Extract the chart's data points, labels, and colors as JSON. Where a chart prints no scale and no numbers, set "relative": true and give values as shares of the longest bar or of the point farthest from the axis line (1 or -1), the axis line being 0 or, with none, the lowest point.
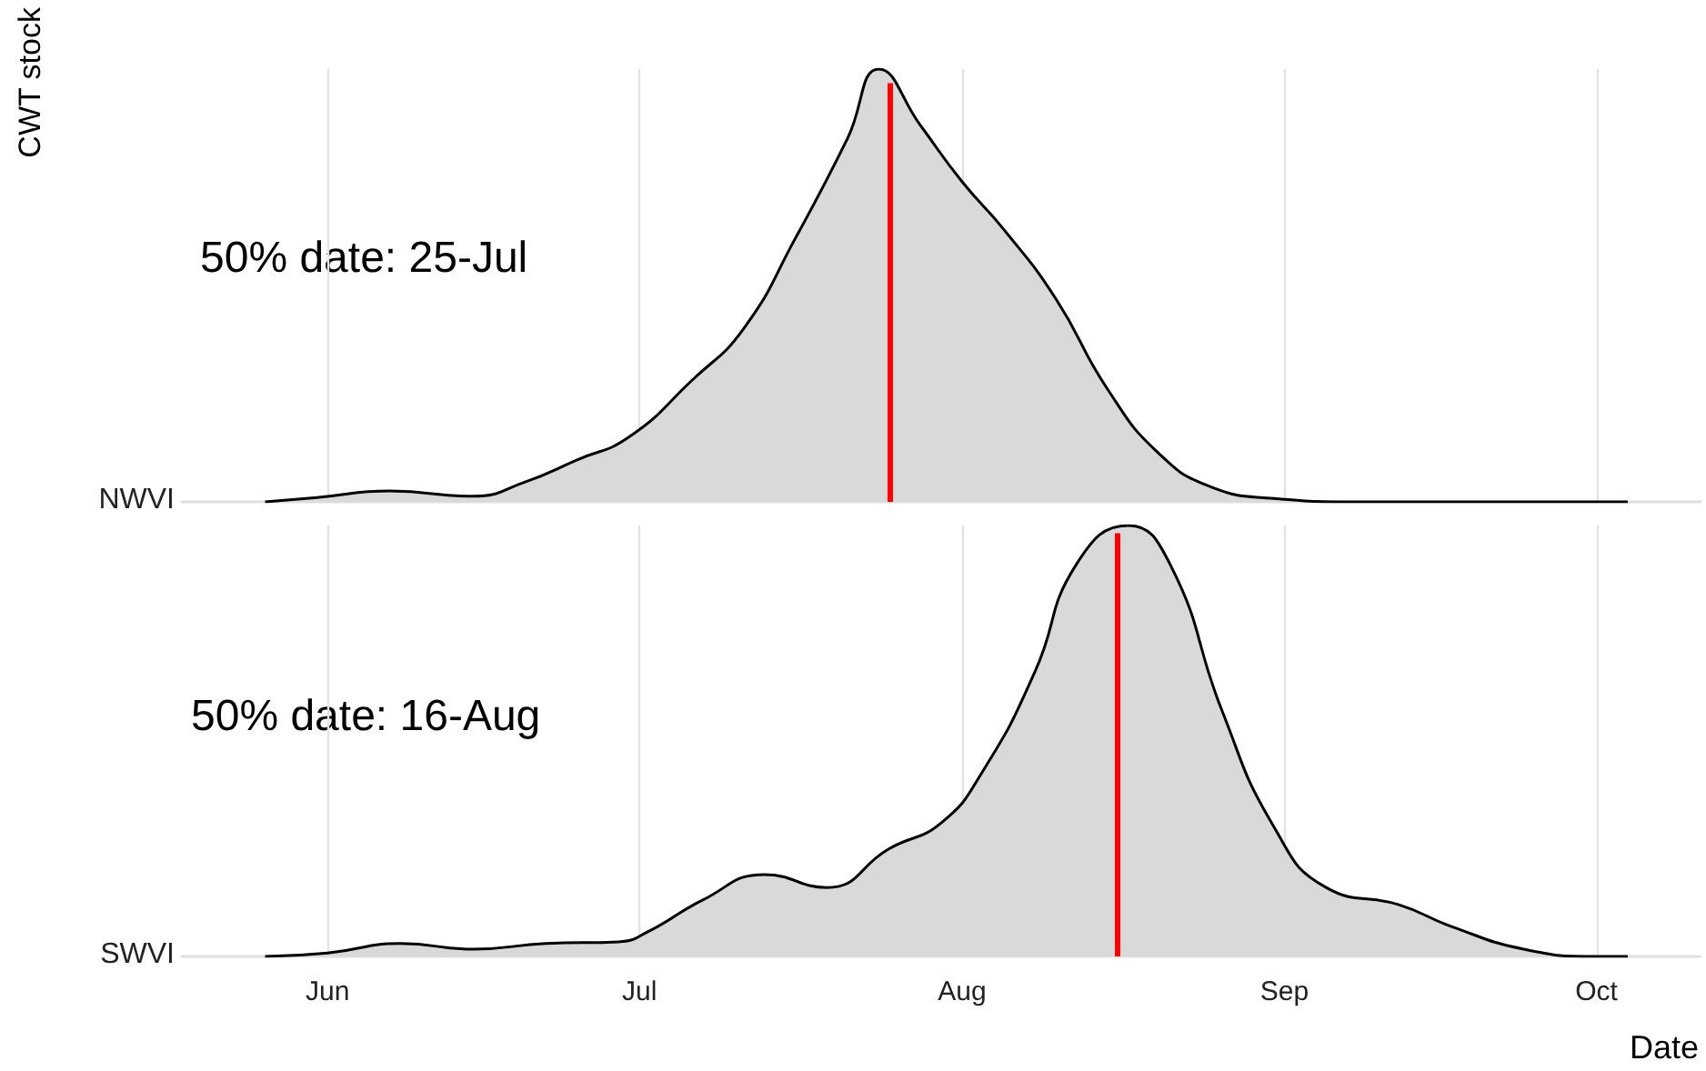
{
  "chart_data": [
    {
      "type": "area",
      "relative": true,
      "ylabel": "CWT stock",
      "tick_labels": false,
      "grid": "x",
      "marker": "none",
      "xlim": [
        "--05-18",
        "--10-11"
      ],
      "xticks": [
        {
          "value": "--06-01",
          "label": "Jun"
        },
        {
          "value": "--07-01",
          "label": "Jul"
        },
        {
          "value": "--08-01",
          "label": "Aug"
        },
        {
          "value": "--09-01",
          "label": "Sep"
        },
        {
          "value": "--10-01",
          "label": "Oct"
        }
      ],
      "series": [
        {
          "name": "NWVI",
          "color": "#d9d9d9",
          "x": [
            "--05-26",
            "--05-31",
            "--06-07",
            "--06-15",
            "--06-20",
            "--06-25",
            "--06-30",
            "--07-06",
            "--07-11",
            "--07-16",
            "--07-21",
            "--07-24",
            "--07-28",
            "--08-01",
            "--08-05",
            "--08-10",
            "--08-15",
            "--08-20",
            "--08-25",
            "--08-31",
            "--09-08",
            "--10-04"
          ],
          "values": [
            0,
            0.01,
            0.025,
            0.013,
            0.046,
            0.097,
            0.15,
            0.28,
            0.4,
            0.61,
            0.84,
            1.0,
            0.87,
            0.74,
            0.63,
            0.47,
            0.26,
            0.11,
            0.034,
            0.008,
            0,
            0
          ]
        }
      ],
      "ref_lines": [
        {
          "axis": "x",
          "value": "--07-25",
          "color": "#ff0000"
        }
      ],
      "annotations": [
        "50% date: 25-Jul"
      ]
    },
    {
      "type": "area",
      "relative": true,
      "xlabel": "Date",
      "tick_labels": "x",
      "grid": "x",
      "marker": "none",
      "xlim": [
        "--05-18",
        "--10-11"
      ],
      "xticks": [
        {
          "value": "--06-01",
          "label": "Jun"
        },
        {
          "value": "--07-01",
          "label": "Jul"
        },
        {
          "value": "--08-01",
          "label": "Aug"
        },
        {
          "value": "--09-01",
          "label": "Sep"
        },
        {
          "value": "--10-01",
          "label": "Oct"
        }
      ],
      "series": [
        {
          "name": "SWVI",
          "color": "#d9d9d9",
          "x": [
            "--05-26",
            "--06-01",
            "--06-08",
            "--06-15",
            "--06-22",
            "--06-29",
            "--07-02",
            "--07-07",
            "--07-13",
            "--07-19",
            "--07-25",
            "--07-30",
            "--08-03",
            "--08-08",
            "--08-12",
            "--08-17",
            "--08-21",
            "--08-26",
            "--08-31",
            "--09-05",
            "--09-12",
            "--09-17",
            "--09-24",
            "--10-01",
            "--10-04"
          ],
          "values": [
            0,
            0.008,
            0.03,
            0.017,
            0.03,
            0.034,
            0.06,
            0.13,
            0.19,
            0.16,
            0.25,
            0.31,
            0.43,
            0.66,
            0.91,
            1.0,
            0.91,
            0.57,
            0.3,
            0.16,
            0.12,
            0.07,
            0.017,
            0,
            0
          ]
        }
      ],
      "ref_lines": [
        {
          "axis": "x",
          "value": "--08-16",
          "color": "#ff0000"
        }
      ],
      "annotations": [
        "50% date: 16-Aug"
      ]
    }
  ]
}
